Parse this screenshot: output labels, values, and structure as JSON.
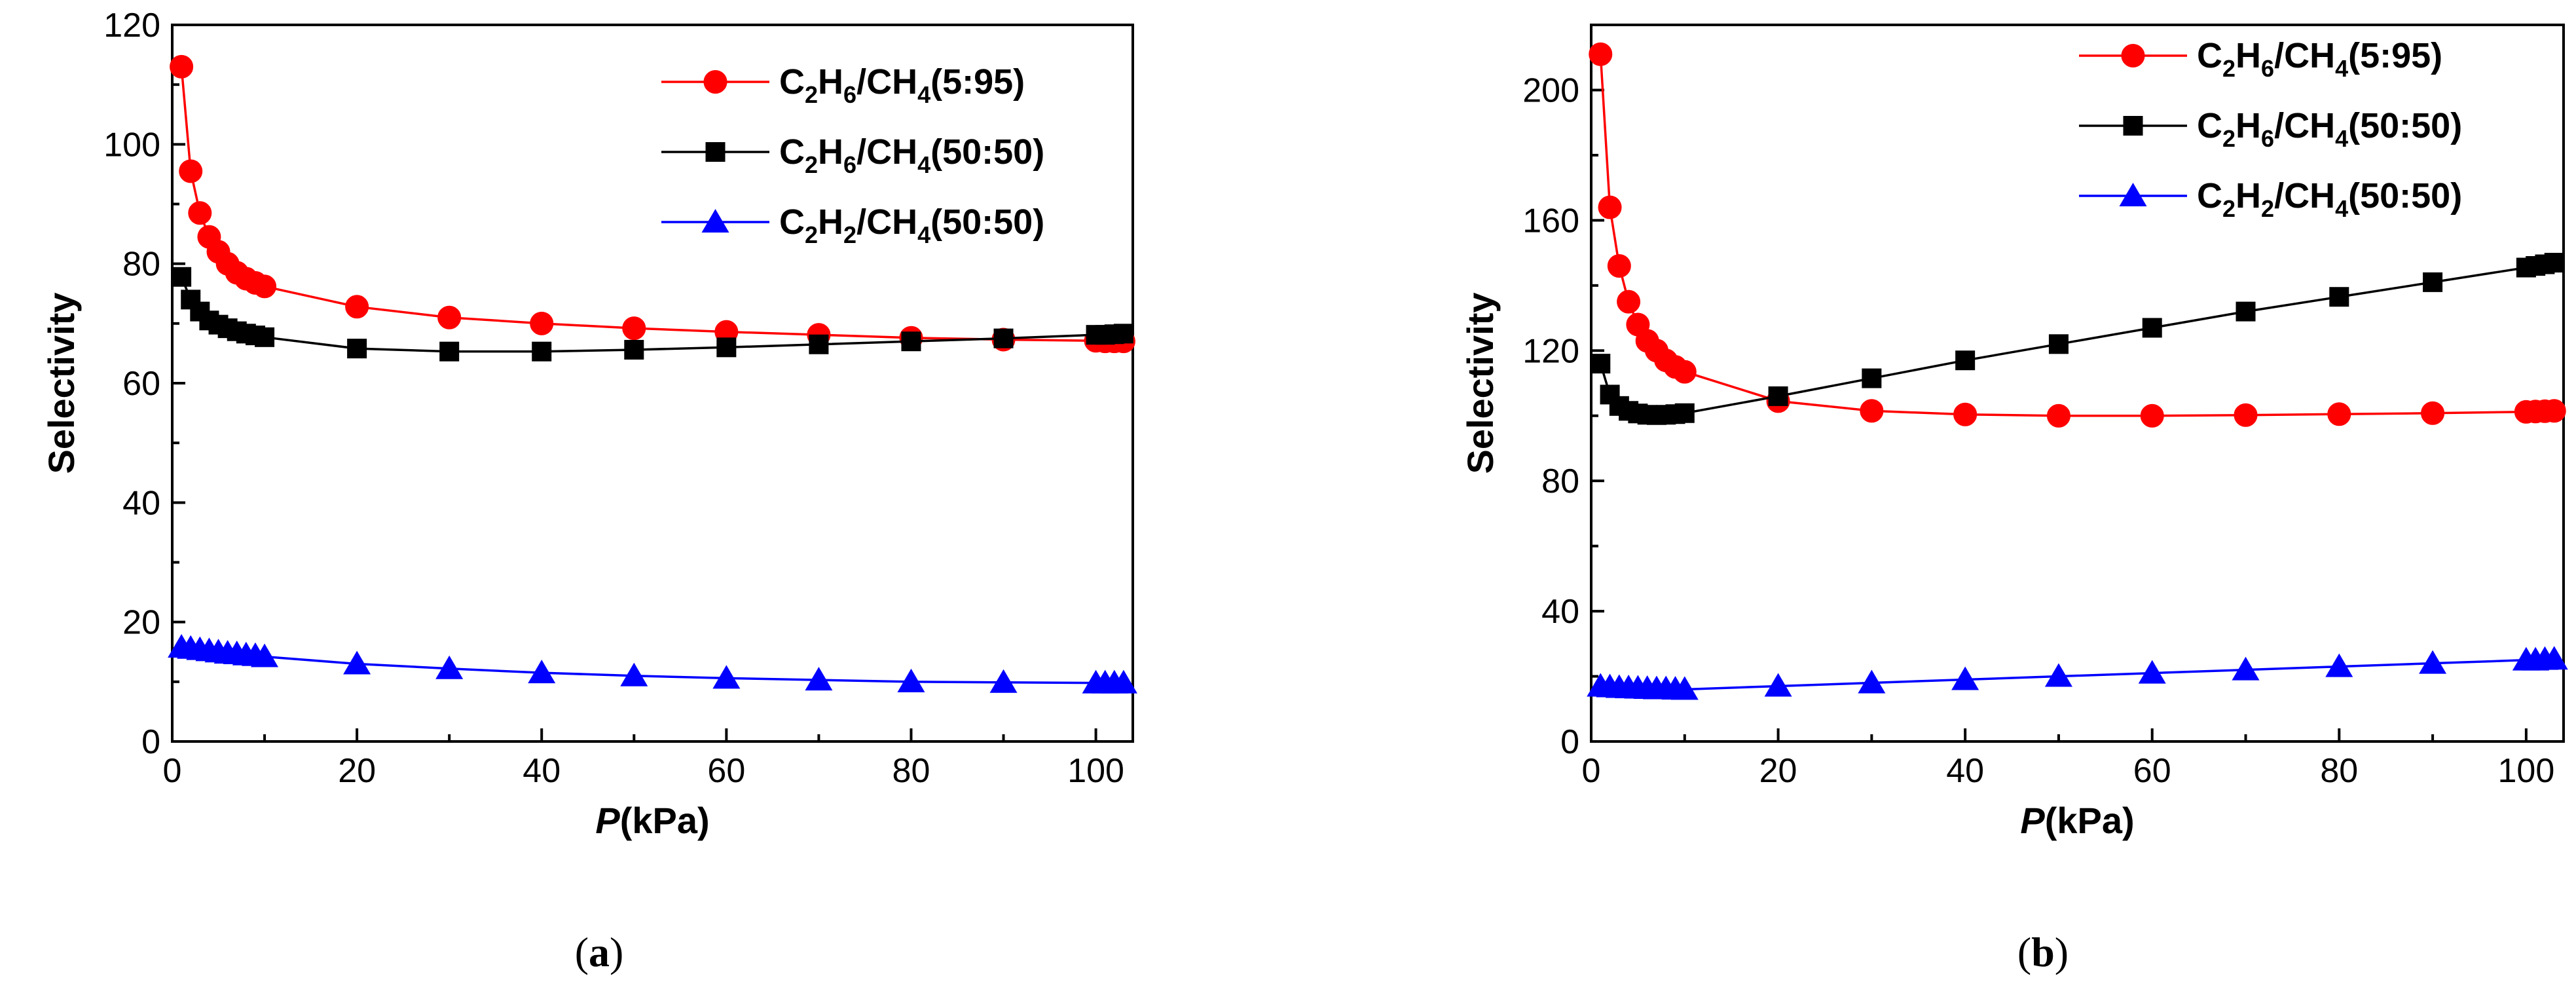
{
  "chart_data": [
    {
      "type": "line",
      "caption": "(a)",
      "xlabel": "P",
      "xlabel_unit": "(kPa)",
      "ylabel": "Selectivity",
      "xlim": [
        0,
        104
      ],
      "ylim": [
        0,
        120
      ],
      "xticks": [
        0,
        20,
        40,
        60,
        80,
        100
      ],
      "yticks": [
        0,
        20,
        40,
        60,
        80,
        100,
        120
      ],
      "legend_position": "top-right",
      "series": [
        {
          "name": "C2H6/CH4(5:95)",
          "label_parts": [
            "C",
            "2",
            "H",
            "6",
            "/CH",
            "4",
            "(5:95)"
          ],
          "color": "#ff0000",
          "marker": "circle",
          "x": [
            1,
            2,
            3,
            4,
            5,
            6,
            7,
            8,
            9,
            10,
            20,
            30,
            40,
            50,
            60,
            70,
            80,
            90,
            100,
            101,
            102,
            103
          ],
          "y": [
            113,
            95.5,
            88.5,
            84.5,
            82,
            80,
            78.5,
            77.5,
            76.8,
            76.2,
            72.8,
            71,
            70,
            69.2,
            68.6,
            68.1,
            67.6,
            67.3,
            67.1,
            67,
            67,
            67
          ]
        },
        {
          "name": "C2H6/CH4(50:50)",
          "label_parts": [
            "C",
            "2",
            "H",
            "6",
            "/CH",
            "4",
            "(50:50)"
          ],
          "color": "#000000",
          "marker": "square",
          "x": [
            1,
            2,
            3,
            4,
            5,
            6,
            7,
            8,
            9,
            10,
            20,
            30,
            40,
            50,
            60,
            70,
            80,
            90,
            100,
            101,
            102,
            103
          ],
          "y": [
            77.8,
            74,
            72,
            70.5,
            69.8,
            69.2,
            68.7,
            68.3,
            68,
            67.7,
            65.8,
            65.3,
            65.3,
            65.6,
            66,
            66.5,
            67,
            67.5,
            68.1,
            68.1,
            68.2,
            68.3
          ]
        },
        {
          "name": "C2H2/CH4(50:50)",
          "label_parts": [
            "C",
            "2",
            "H",
            "2",
            "/CH",
            "4",
            "(50:50)"
          ],
          "color": "#0000ff",
          "marker": "triangle",
          "x": [
            1,
            2,
            3,
            4,
            5,
            6,
            7,
            8,
            9,
            10,
            20,
            30,
            40,
            50,
            60,
            70,
            80,
            90,
            100,
            101,
            102,
            103
          ],
          "y": [
            15.8,
            15.6,
            15.4,
            15.2,
            15,
            14.8,
            14.7,
            14.5,
            14.4,
            14.2,
            13,
            12.2,
            11.5,
            11,
            10.6,
            10.3,
            10,
            9.9,
            9.8,
            9.8,
            9.8,
            9.8
          ]
        }
      ]
    },
    {
      "type": "line",
      "caption": "(b)",
      "xlabel": "P",
      "xlabel_unit": "(kPa)",
      "ylabel": "Selectivity",
      "xlim": [
        0,
        104
      ],
      "ylim": [
        0,
        220
      ],
      "xticks": [
        0,
        20,
        40,
        60,
        80,
        100
      ],
      "yticks": [
        0,
        40,
        80,
        120,
        160,
        200
      ],
      "legend_position": "top-right",
      "series": [
        {
          "name": "C2H6/CH4(5:95)",
          "label_parts": [
            "C",
            "2",
            "H",
            "6",
            "/CH",
            "4",
            "(5:95)"
          ],
          "color": "#ff0000",
          "marker": "circle",
          "x": [
            1,
            2,
            3,
            4,
            5,
            6,
            7,
            8,
            9,
            10,
            20,
            30,
            40,
            50,
            60,
            70,
            80,
            90,
            100,
            101,
            102,
            103
          ],
          "y": [
            211,
            164,
            146,
            135,
            128,
            123,
            120,
            117,
            115,
            113.5,
            104.5,
            101.5,
            100.4,
            100,
            100,
            100.2,
            100.5,
            100.8,
            101.2,
            101.3,
            101.4,
            101.5
          ]
        },
        {
          "name": "C2H6/CH4(50:50)",
          "label_parts": [
            "C",
            "2",
            "H",
            "6",
            "/CH",
            "4",
            "(50:50)"
          ],
          "color": "#000000",
          "marker": "square",
          "x": [
            1,
            2,
            3,
            4,
            5,
            6,
            7,
            8,
            9,
            10,
            20,
            30,
            40,
            50,
            60,
            70,
            80,
            90,
            100,
            101,
            102,
            103
          ],
          "y": [
            116,
            106.5,
            103,
            101.5,
            100.7,
            100.3,
            100.2,
            100.3,
            100.5,
            100.8,
            106,
            111.5,
            117,
            122,
            127,
            132,
            136.5,
            141,
            145.5,
            146,
            146.5,
            147
          ]
        },
        {
          "name": "C2H2/CH4(50:50)",
          "label_parts": [
            "C",
            "2",
            "H",
            "2",
            "/CH",
            "4",
            "(50:50)"
          ],
          "color": "#0000ff",
          "marker": "triangle",
          "x": [
            1,
            2,
            3,
            4,
            5,
            6,
            7,
            8,
            9,
            10,
            20,
            30,
            40,
            50,
            60,
            70,
            80,
            90,
            100,
            101,
            102,
            103
          ],
          "y": [
            17,
            16.8,
            16.6,
            16.5,
            16.4,
            16.3,
            16.2,
            16.2,
            16.1,
            16,
            17,
            18,
            19,
            20,
            21,
            22,
            23,
            24,
            25,
            25,
            25.2,
            25.3
          ]
        }
      ]
    }
  ]
}
